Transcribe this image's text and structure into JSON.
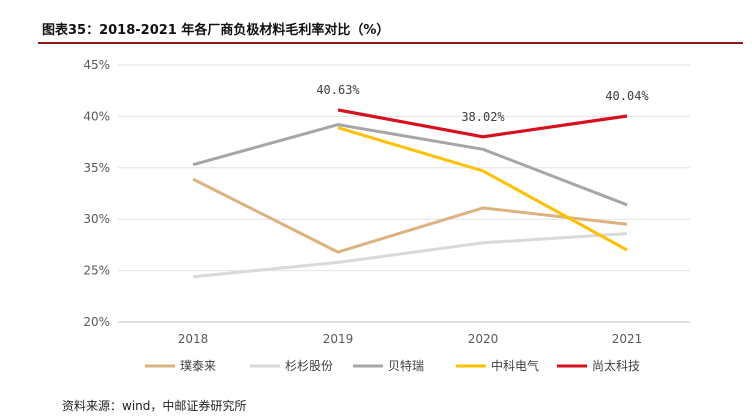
{
  "title": "图表35：2018-2021 年各厂商负极材料毛利率对比（%）",
  "source": "资料来源：wind，中邮证券研究所",
  "chart_data": {
    "type": "line",
    "categories": [
      "2018",
      "2019",
      "2020",
      "2021"
    ],
    "y_ticks": [
      "45%",
      "40%",
      "35%",
      "30%",
      "25%",
      "20%"
    ],
    "ylim": [
      20,
      45
    ],
    "grid": true,
    "legend_position": "bottom",
    "series": [
      {
        "name": "璞泰来",
        "color": "#dcb27f",
        "values": [
          33.9,
          26.8,
          31.1,
          29.5
        ]
      },
      {
        "name": "杉杉股份",
        "color": "#d9d9d9",
        "values": [
          24.4,
          25.8,
          27.7,
          28.6
        ]
      },
      {
        "name": "贝特瑞",
        "color": "#a6a6a6",
        "values": [
          35.3,
          39.2,
          36.8,
          31.4
        ]
      },
      {
        "name": "中科电气",
        "color": "#ffc000",
        "values": [
          null,
          38.9,
          34.7,
          27.0
        ]
      },
      {
        "name": "尚太科技",
        "color": "#d7101e",
        "values": [
          null,
          40.63,
          38.02,
          40.04
        ]
      }
    ],
    "data_labels": [
      {
        "series": "尚太科技",
        "category": "2019",
        "text": "40.63%"
      },
      {
        "series": "尚太科技",
        "category": "2020",
        "text": "38.02%"
      },
      {
        "series": "尚太科技",
        "category": "2021",
        "text": "40.04%"
      }
    ]
  }
}
